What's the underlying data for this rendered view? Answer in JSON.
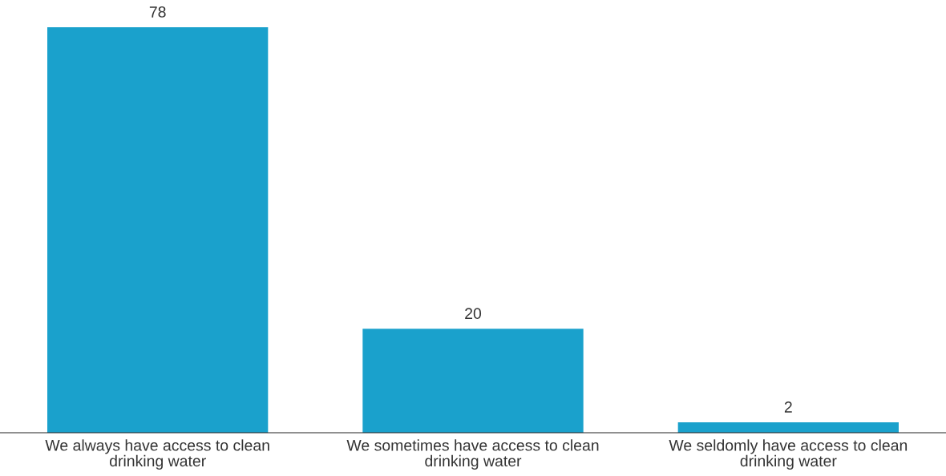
{
  "chart_data": {
    "type": "bar",
    "categories": [
      "We always have access to clean drinking water",
      "We sometimes have access to clean drinking water",
      "We seldomly have access to clean drinking water"
    ],
    "values": [
      78,
      20,
      2
    ],
    "color": "#1aa1cc",
    "data_labels": true,
    "grid": false,
    "legend": false
  }
}
